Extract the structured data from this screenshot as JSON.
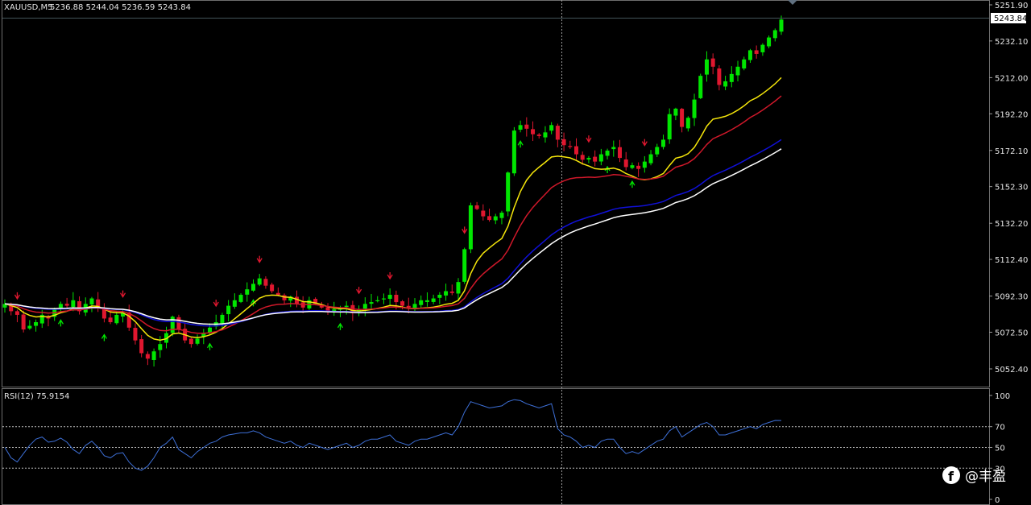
{
  "chart_data": [
    {
      "type": "candlestick",
      "title": "XAUUSD,M5",
      "ohlc_label": "5236.88 5244.04 5236.59 5243.84",
      "current_price": 5243.84,
      "current_price_label": "5243.84",
      "ylim": [
        5043.0,
        5255.0
      ],
      "y_ticks": [
        5251.9,
        5232.1,
        5212.0,
        5192.2,
        5172.1,
        5152.3,
        5132.2,
        5112.4,
        5092.3,
        5072.5,
        5052.4
      ],
      "y_tick_labels": [
        "5251.90",
        "5232.10",
        "5212.00",
        "5192.20",
        "5172.10",
        "5152.30",
        "5132.20",
        "5112.40",
        "5092.30",
        "5072.50",
        "5052.40"
      ],
      "bull_color": "#00e600",
      "bear_color": "#e0172f",
      "closes": [
        5088,
        5084,
        5082,
        5074,
        5076,
        5078,
        5082,
        5080,
        5085,
        5088,
        5087,
        5090,
        5084,
        5088,
        5091,
        5086,
        5080,
        5078,
        5082,
        5083,
        5075,
        5068,
        5061,
        5058,
        5062,
        5066,
        5072,
        5081,
        5074,
        5068,
        5066,
        5069,
        5072,
        5075,
        5078,
        5082,
        5087,
        5090,
        5093,
        5096,
        5099,
        5102,
        5098,
        5095,
        5093,
        5090,
        5092,
        5088,
        5086,
        5090,
        5088,
        5086,
        5084,
        5085,
        5086,
        5087,
        5083,
        5085,
        5088,
        5089,
        5090,
        5091,
        5093,
        5089,
        5087,
        5086,
        5088,
        5090,
        5090,
        5091,
        5093,
        5095,
        5094,
        5100,
        5118,
        5142,
        5140,
        5136,
        5134,
        5136,
        5138,
        5160,
        5183,
        5186,
        5184,
        5181,
        5180,
        5182,
        5186,
        5178,
        5175,
        5174,
        5170,
        5167,
        5168,
        5166,
        5170,
        5172,
        5174,
        5168,
        5163,
        5164,
        5162,
        5166,
        5170,
        5174,
        5178,
        5192,
        5195,
        5185,
        5190,
        5200,
        5213,
        5222,
        5218,
        5208,
        5210,
        5214,
        5218,
        5222,
        5227,
        5225,
        5230,
        5234,
        5238,
        5243.84
      ],
      "ema_yellow_end": 5212,
      "ema_red_end": 5202,
      "ema_blue_end": 5178,
      "ema_white_end": 5173
    },
    {
      "type": "line",
      "title": "RSI(12) 75.9154",
      "ylim": [
        0,
        100
      ],
      "y_ticks": [
        100,
        70,
        50,
        30,
        0
      ],
      "y_tick_labels": [
        "100",
        "70",
        "50",
        "30",
        "0"
      ],
      "line_color": "#3d6fd6",
      "values": [
        50,
        40,
        36,
        44,
        52,
        58,
        60,
        55,
        56,
        59,
        55,
        48,
        44,
        52,
        56,
        50,
        42,
        40,
        44,
        45,
        36,
        30,
        28,
        32,
        40,
        50,
        54,
        60,
        48,
        44,
        40,
        46,
        50,
        54,
        56,
        60,
        62,
        63,
        64,
        64,
        66,
        64,
        60,
        58,
        56,
        54,
        56,
        52,
        50,
        54,
        52,
        50,
        48,
        50,
        52,
        54,
        50,
        52,
        56,
        58,
        58,
        60,
        62,
        56,
        54,
        52,
        56,
        58,
        58,
        60,
        62,
        64,
        62,
        70,
        84,
        94,
        92,
        90,
        88,
        89,
        90,
        94,
        96,
        95,
        92,
        90,
        88,
        90,
        92,
        68,
        62,
        60,
        56,
        50,
        52,
        50,
        56,
        58,
        58,
        50,
        44,
        46,
        44,
        48,
        52,
        56,
        58,
        66,
        70,
        60,
        64,
        68,
        72,
        74,
        70,
        62,
        62,
        64,
        66,
        68,
        70,
        68,
        72,
        74,
        76,
        75.9154
      ]
    }
  ],
  "watermark": {
    "icon": "facebook-icon",
    "text": "@丰盈"
  }
}
